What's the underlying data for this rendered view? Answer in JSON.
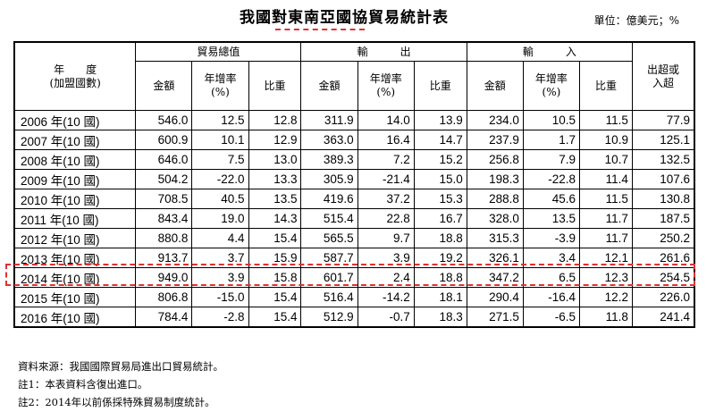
{
  "title": "我國對東南亞國協貿易統計表",
  "unit": "單位：億美元；%",
  "headers": {
    "year_line1": "年　　度",
    "year_line2": "(加盟國數)",
    "total": "貿易總值",
    "export": "輸　　　出",
    "import": "輸　　　入",
    "surplus_line1": "出超或",
    "surplus_line2": "入超",
    "amount": "金額",
    "growth_line1": "年增率",
    "growth_line2": "(%)",
    "share": "比重"
  },
  "rows": [
    {
      "year": "2006 年(10 國)",
      "t_amt": "546.0",
      "t_gr": "12.5",
      "t_sh": "12.8",
      "e_amt": "311.9",
      "e_gr": "14.0",
      "e_sh": "13.9",
      "i_amt": "234.0",
      "i_gr": "10.5",
      "i_sh": "11.5",
      "bal": "77.9"
    },
    {
      "year": "2007 年(10 國)",
      "t_amt": "600.9",
      "t_gr": "10.1",
      "t_sh": "12.9",
      "e_amt": "363.0",
      "e_gr": "16.4",
      "e_sh": "14.7",
      "i_amt": "237.9",
      "i_gr": "1.7",
      "i_sh": "10.9",
      "bal": "125.1"
    },
    {
      "year": "2008 年(10 國)",
      "t_amt": "646.0",
      "t_gr": "7.5",
      "t_sh": "13.0",
      "e_amt": "389.3",
      "e_gr": "7.2",
      "e_sh": "15.2",
      "i_amt": "256.8",
      "i_gr": "7.9",
      "i_sh": "10.7",
      "bal": "132.5"
    },
    {
      "year": "2009 年(10 國)",
      "t_amt": "504.2",
      "t_gr": "-22.0",
      "t_sh": "13.3",
      "e_amt": "305.9",
      "e_gr": "-21.4",
      "e_sh": "15.0",
      "i_amt": "198.3",
      "i_gr": "-22.8",
      "i_sh": "11.4",
      "bal": "107.6"
    },
    {
      "year": "2010 年(10 國)",
      "t_amt": "708.5",
      "t_gr": "40.5",
      "t_sh": "13.5",
      "e_amt": "419.6",
      "e_gr": "37.2",
      "e_sh": "15.3",
      "i_amt": "288.8",
      "i_gr": "45.6",
      "i_sh": "11.5",
      "bal": "130.8"
    },
    {
      "year": "2011 年(10 國)",
      "t_amt": "843.4",
      "t_gr": "19.0",
      "t_sh": "14.3",
      "e_amt": "515.4",
      "e_gr": "22.8",
      "e_sh": "16.7",
      "i_amt": "328.0",
      "i_gr": "13.5",
      "i_sh": "11.7",
      "bal": "187.5"
    },
    {
      "year": "2012 年(10 國)",
      "t_amt": "880.8",
      "t_gr": "4.4",
      "t_sh": "15.4",
      "e_amt": "565.5",
      "e_gr": "9.7",
      "e_sh": "18.8",
      "i_amt": "315.3",
      "i_gr": "-3.9",
      "i_sh": "11.7",
      "bal": "250.2"
    },
    {
      "year": "2013 年(10 國)",
      "t_amt": "913.7",
      "t_gr": "3.7",
      "t_sh": "15.9",
      "e_amt": "587.7",
      "e_gr": "3.9",
      "e_sh": "19.2",
      "i_amt": "326.1",
      "i_gr": "3.4",
      "i_sh": "12.1",
      "bal": "261.6"
    },
    {
      "year": "2014 年(10 國)",
      "t_amt": "949.0",
      "t_gr": "3.9",
      "t_sh": "15.8",
      "e_amt": "601.7",
      "e_gr": "2.4",
      "e_sh": "18.8",
      "i_amt": "347.2",
      "i_gr": "6.5",
      "i_sh": "12.3",
      "bal": "254.5"
    },
    {
      "year": "2015 年(10 國)",
      "t_amt": "806.8",
      "t_gr": "-15.0",
      "t_sh": "15.4",
      "e_amt": "516.4",
      "e_gr": "-14.2",
      "e_sh": "18.1",
      "i_amt": "290.4",
      "i_gr": "-16.4",
      "i_sh": "12.2",
      "bal": "226.0"
    },
    {
      "year": "2016 年(10 國)",
      "t_amt": "784.4",
      "t_gr": "-2.8",
      "t_sh": "15.4",
      "e_amt": "512.9",
      "e_gr": "-0.7",
      "e_sh": "18.3",
      "i_amt": "271.5",
      "i_gr": "-6.5",
      "i_sh": "11.8",
      "bal": "241.4"
    }
  ],
  "notes": [
    "資料來源：我國國際貿易局進出口貿易統計。",
    "註1：本表資料含復出進口。",
    "註2：2014年以前係採特殊貿易制度統計。"
  ],
  "highlight_color": "#e03131"
}
